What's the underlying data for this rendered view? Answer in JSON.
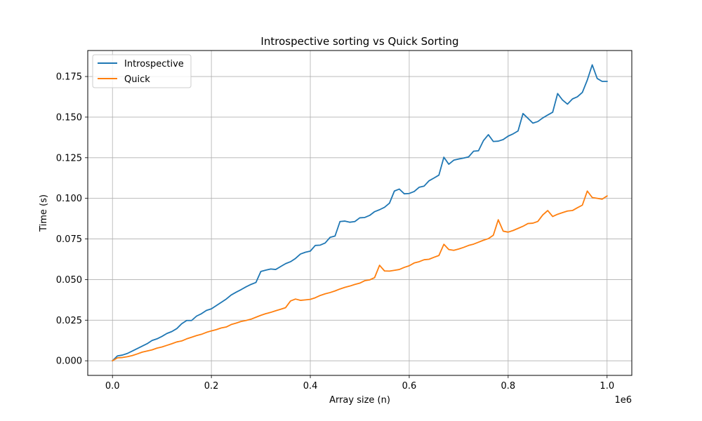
{
  "chart_data": {
    "type": "line",
    "title": "Introspective sorting vs Quick Sorting",
    "xlabel": "Array size (n)",
    "ylabel": "Time (s)",
    "x_offset_label": "1e6",
    "xlim": [
      -0.05,
      1.05
    ],
    "ylim": [
      -0.009,
      0.191
    ],
    "grid": true,
    "legend_position": "top-left",
    "x_ticks": [
      0.0,
      0.2,
      0.4,
      0.6,
      0.8,
      1.0
    ],
    "x_tick_labels": [
      "0.0",
      "0.2",
      "0.4",
      "0.6",
      "0.8",
      "1.0"
    ],
    "y_ticks": [
      0.0,
      0.025,
      0.05,
      0.075,
      0.1,
      0.125,
      0.15,
      0.175
    ],
    "y_tick_labels": [
      "0.000",
      "0.025",
      "0.050",
      "0.075",
      "0.100",
      "0.125",
      "0.150",
      "0.175"
    ],
    "x": [
      0.0,
      0.01,
      0.02,
      0.03,
      0.04,
      0.05,
      0.06,
      0.07,
      0.08,
      0.09,
      0.1,
      0.11,
      0.12,
      0.13,
      0.14,
      0.15,
      0.16,
      0.17,
      0.18,
      0.19,
      0.2,
      0.21,
      0.22,
      0.23,
      0.24,
      0.25,
      0.26,
      0.27,
      0.28,
      0.29,
      0.3,
      0.31,
      0.32,
      0.33,
      0.34,
      0.35,
      0.36,
      0.37,
      0.38,
      0.39,
      0.4,
      0.41,
      0.42,
      0.43,
      0.44,
      0.45,
      0.46,
      0.47,
      0.48,
      0.49,
      0.5,
      0.51,
      0.52,
      0.53,
      0.54,
      0.55,
      0.56,
      0.57,
      0.58,
      0.59,
      0.6,
      0.61,
      0.62,
      0.63,
      0.64,
      0.65,
      0.66,
      0.67,
      0.68,
      0.69,
      0.7,
      0.71,
      0.72,
      0.73,
      0.74,
      0.75,
      0.76,
      0.77,
      0.78,
      0.79,
      0.8,
      0.81,
      0.82,
      0.83,
      0.84,
      0.85,
      0.86,
      0.87,
      0.88,
      0.89,
      0.9,
      0.91,
      0.92,
      0.93,
      0.94,
      0.95,
      0.96,
      0.97,
      0.98,
      0.99,
      1.0
    ],
    "series": [
      {
        "name": "Introspective",
        "color": "#1f77b4",
        "values": [
          0.0,
          0.003,
          0.0035,
          0.0045,
          0.006,
          0.0075,
          0.009,
          0.0105,
          0.0125,
          0.0135,
          0.015,
          0.0168,
          0.018,
          0.0198,
          0.0228,
          0.0248,
          0.0248,
          0.0275,
          0.029,
          0.031,
          0.032,
          0.034,
          0.036,
          0.038,
          0.0405,
          0.0422,
          0.0438,
          0.0455,
          0.047,
          0.0482,
          0.055,
          0.0558,
          0.0565,
          0.0562,
          0.058,
          0.0598,
          0.061,
          0.063,
          0.0657,
          0.0668,
          0.0675,
          0.071,
          0.0712,
          0.0725,
          0.076,
          0.0768,
          0.0857,
          0.086,
          0.0853,
          0.0857,
          0.088,
          0.0882,
          0.0895,
          0.0918,
          0.093,
          0.0945,
          0.097,
          0.1045,
          0.1057,
          0.1028,
          0.103,
          0.1042,
          0.1068,
          0.1075,
          0.1108,
          0.1125,
          0.1143,
          0.1253,
          0.121,
          0.1235,
          0.1242,
          0.1248,
          0.1255,
          0.129,
          0.1293,
          0.1355,
          0.1392,
          0.135,
          0.1352,
          0.1362,
          0.1383,
          0.1397,
          0.1415,
          0.1522,
          0.1493,
          0.1463,
          0.1473,
          0.1495,
          0.1513,
          0.153,
          0.1645,
          0.1605,
          0.158,
          0.1612,
          0.1625,
          0.1652,
          0.1728,
          0.1822,
          0.1738,
          0.172,
          0.172
        ]
      },
      {
        "name": "Quick",
        "color": "#ff7f0e",
        "values": [
          0.0,
          0.0018,
          0.002,
          0.0025,
          0.0032,
          0.0042,
          0.0053,
          0.006,
          0.0067,
          0.0078,
          0.0085,
          0.0095,
          0.0105,
          0.0116,
          0.0122,
          0.0135,
          0.0145,
          0.0155,
          0.0163,
          0.0175,
          0.0184,
          0.0192,
          0.0202,
          0.0208,
          0.0223,
          0.0232,
          0.0242,
          0.0248,
          0.0256,
          0.0268,
          0.028,
          0.029,
          0.0298,
          0.0308,
          0.0317,
          0.0327,
          0.0368,
          0.038,
          0.0372,
          0.0375,
          0.0378,
          0.0388,
          0.0402,
          0.0412,
          0.042,
          0.043,
          0.0442,
          0.0452,
          0.046,
          0.047,
          0.0478,
          0.0493,
          0.0498,
          0.0512,
          0.0588,
          0.0553,
          0.0552,
          0.0557,
          0.0562,
          0.0575,
          0.0585,
          0.0602,
          0.061,
          0.0622,
          0.0625,
          0.0637,
          0.0648,
          0.0717,
          0.0685,
          0.068,
          0.0688,
          0.0698,
          0.071,
          0.0718,
          0.073,
          0.0742,
          0.0752,
          0.0773,
          0.0868,
          0.0798,
          0.0792,
          0.0802,
          0.0815,
          0.0828,
          0.0845,
          0.0847,
          0.0858,
          0.0898,
          0.0925,
          0.0888,
          0.0902,
          0.0912,
          0.0922,
          0.0925,
          0.0942,
          0.0958,
          0.1045,
          0.1005,
          0.1,
          0.0995,
          0.1015
        ]
      }
    ]
  }
}
